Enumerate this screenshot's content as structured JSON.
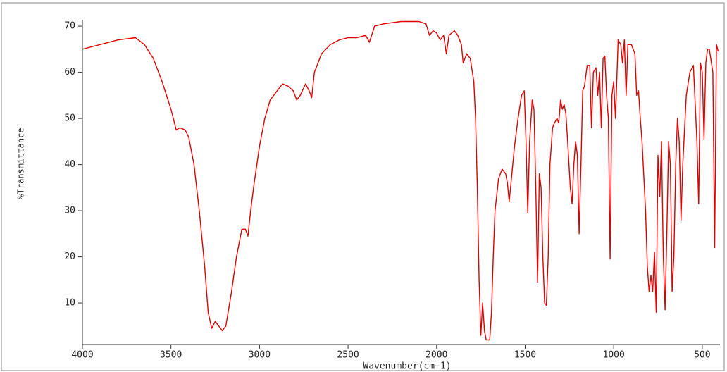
{
  "chart_data": {
    "type": "line",
    "xlabel": "Wavenumber(cm−1)",
    "ylabel": "%Transmittance",
    "color": "#e00000",
    "xlim": [
      4000,
      400
    ],
    "ylim": [
      1,
      72
    ],
    "xticks": [
      4000,
      3500,
      3000,
      2500,
      2000,
      1500,
      1000,
      500
    ],
    "yticks": [
      10,
      20,
      30,
      40,
      50,
      60,
      70
    ],
    "x": [
      4000,
      3900,
      3800,
      3700,
      3650,
      3600,
      3550,
      3500,
      3470,
      3450,
      3420,
      3400,
      3370,
      3340,
      3310,
      3290,
      3270,
      3250,
      3230,
      3210,
      3190,
      3160,
      3130,
      3100,
      3080,
      3065,
      3050,
      3030,
      3000,
      2970,
      2940,
      2900,
      2870,
      2840,
      2810,
      2790,
      2770,
      2740,
      2720,
      2705,
      2690,
      2650,
      2600,
      2550,
      2500,
      2450,
      2400,
      2380,
      2350,
      2300,
      2200,
      2100,
      2060,
      2040,
      2020,
      2000,
      1980,
      1960,
      1945,
      1930,
      1900,
      1880,
      1860,
      1850,
      1830,
      1810,
      1790,
      1780,
      1770,
      1760,
      1750,
      1740,
      1730,
      1720,
      1700,
      1690,
      1680,
      1670,
      1650,
      1630,
      1610,
      1600,
      1590,
      1580,
      1560,
      1540,
      1520,
      1505,
      1495,
      1485,
      1475,
      1460,
      1450,
      1440,
      1430,
      1420,
      1410,
      1400,
      1390,
      1380,
      1370,
      1360,
      1345,
      1335,
      1320,
      1310,
      1300,
      1290,
      1280,
      1270,
      1260,
      1245,
      1235,
      1225,
      1215,
      1205,
      1195,
      1185,
      1175,
      1165,
      1150,
      1135,
      1125,
      1115,
      1100,
      1090,
      1080,
      1070,
      1060,
      1050,
      1040,
      1030,
      1020,
      1010,
      1000,
      990,
      975,
      960,
      950,
      940,
      930,
      920,
      900,
      880,
      870,
      860,
      850,
      840,
      820,
      810,
      800,
      790,
      780,
      770,
      760,
      750,
      740,
      730,
      720,
      710,
      700,
      690,
      680,
      670,
      660,
      650,
      640,
      630,
      620,
      610,
      590,
      570,
      550,
      530,
      520,
      510,
      500,
      490,
      480,
      470,
      460,
      440,
      430,
      420,
      410
    ],
    "values": [
      65,
      66,
      67,
      67.5,
      66,
      63,
      58,
      52,
      47.5,
      48,
      47.5,
      46,
      40,
      30,
      18,
      8,
      4.5,
      6,
      5,
      4,
      5,
      12,
      20,
      26,
      26,
      24.5,
      30,
      36,
      44,
      50,
      54,
      56,
      57.5,
      57,
      56,
      54,
      55,
      57.5,
      56,
      54.5,
      60,
      64,
      66,
      67,
      67.5,
      67.5,
      68,
      66.5,
      70,
      70.5,
      71,
      71,
      70.5,
      68,
      69,
      68.5,
      67,
      68,
      64,
      68,
      69,
      68,
      66,
      62,
      64,
      63,
      58,
      50,
      35,
      15,
      3,
      10,
      4,
      2,
      2,
      8,
      20,
      30,
      37,
      39,
      38,
      36,
      32,
      36,
      44,
      50,
      55,
      56,
      45,
      29.5,
      45,
      54,
      52,
      35,
      14.5,
      38,
      35,
      20,
      10,
      9.5,
      20,
      40,
      48,
      49,
      50,
      49,
      54,
      52,
      53,
      51,
      45,
      35,
      31.5,
      40,
      45,
      42,
      25,
      40,
      56,
      57,
      61.5,
      61.5,
      48,
      60,
      61,
      55,
      60,
      48,
      63,
      63.5,
      55,
      50,
      19.5,
      55,
      58,
      50,
      67,
      66,
      62,
      67,
      55,
      66,
      66,
      64,
      55,
      56,
      50,
      45,
      30,
      18,
      12.5,
      16,
      12.5,
      21,
      8,
      42,
      33,
      45,
      20,
      8.5,
      25,
      45,
      40,
      12.5,
      20,
      40,
      50,
      45,
      28,
      40,
      55,
      60,
      61.5,
      45,
      31.5,
      62,
      60,
      45.5,
      62,
      65,
      65,
      60,
      22,
      66,
      64.5
    ]
  }
}
